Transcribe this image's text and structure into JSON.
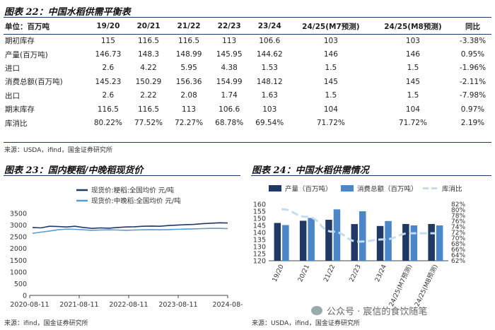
{
  "table": {
    "title": "图表 22：中国水稻供需平衡表",
    "header": [
      "单位：百万吨",
      "19/20",
      "20/21",
      "21/22",
      "22/23",
      "23/24",
      "24/25(M7预测)",
      "24/25(M8预测)",
      "同比"
    ],
    "rows": [
      [
        "期初库存",
        "115",
        "116.5",
        "116.5",
        "113",
        "106.6",
        "103",
        "103",
        "-3.38%"
      ],
      [
        "产量(百万吨)",
        "146.73",
        "148.3",
        "148.99",
        "145.95",
        "144.62",
        "146",
        "146",
        "0.95%"
      ],
      [
        "进口",
        "2.6",
        "4.22",
        "5.95",
        "4.38",
        "1.53",
        "1.5",
        "1.5",
        "-1.96%"
      ],
      [
        "消费总额(百万吨)",
        "145.23",
        "150.29",
        "156.36",
        "154.99",
        "148.12",
        "145",
        "145",
        "-2.11%"
      ],
      [
        "出口",
        "2.6",
        "2.22",
        "2.08",
        "1.74",
        "1.63",
        "1.5",
        "1.5",
        "-7.98%"
      ],
      [
        "期末库存",
        "116.5",
        "116.5",
        "113",
        "106.6",
        "103",
        "104",
        "104",
        "0.97%"
      ],
      [
        "库消比",
        "80.22%",
        "77.52%",
        "72.27%",
        "68.78%",
        "69.54%",
        "71.72%",
        "71.72%",
        "2.19%"
      ]
    ],
    "source": "来源：USDA，ifind，国金证券研究所"
  },
  "chart_left": {
    "title": "图表 23：国内粳稻/中晚稻现货价",
    "source": "来源：ifind，国金证券研究所",
    "colors": [
      "#1f3864",
      "#5b9bd5"
    ],
    "chart_data": {
      "type": "line",
      "title": "",
      "series": [
        {
          "name": "现货价:粳稻:全国均价 元/吨",
          "values": [
            2900,
            2880,
            2950,
            2940,
            2920,
            2950,
            2900,
            2860,
            2880,
            2870,
            2900,
            2920,
            2930,
            2950,
            2960,
            2950,
            2980,
            3000,
            3020,
            3030,
            3060,
            3080,
            3100,
            3090
          ]
        },
        {
          "name": "现货价:中晚稻:全国均价 元/吨",
          "values": [
            2650,
            2700,
            2750,
            2800,
            2830,
            2820,
            2800,
            2780,
            2790,
            2800,
            2790,
            2780,
            2790,
            2800,
            2810,
            2800,
            2810,
            2820,
            2830,
            2840,
            2850,
            2860,
            2860,
            2850
          ]
        }
      ],
      "x_ticks": [
        "2020-08-11",
        "2021-08-11",
        "2022-08-11",
        "2023-08-11",
        "2024-08-"
      ],
      "y_ticks": [
        "0",
        "500",
        "1000",
        "1500",
        "2000",
        "2500",
        "3000",
        "3500"
      ],
      "ylim": [
        0,
        3500
      ]
    }
  },
  "chart_right": {
    "title": "图表 24：中国水稻供需情况",
    "source": "来源：USDA，ifind，国金证券研究所",
    "colors": {
      "production": "#1f3864",
      "consumption": "#4a86c8",
      "ratio": "#c5dcf0"
    },
    "chart_data": {
      "type": "bar",
      "categories": [
        "19/20",
        "20/21",
        "21/22",
        "22/23",
        "23/24",
        "24/25(M7预测)",
        "24/25(M8预测)"
      ],
      "series": [
        {
          "name": "产量（百万吨）",
          "values": [
            146.73,
            148.3,
            148.99,
            145.95,
            144.62,
            146,
            146
          ]
        },
        {
          "name": "消费总额（百万吨）",
          "values": [
            145.23,
            150.29,
            156.36,
            154.99,
            148.12,
            145,
            145
          ]
        },
        {
          "name": "库消比",
          "values": [
            80.22,
            77.52,
            72.27,
            68.78,
            69.54,
            71.72,
            71.72
          ]
        }
      ],
      "y_ticks": [
        "120",
        "125",
        "130",
        "135",
        "140",
        "145",
        "150",
        "155",
        "160"
      ],
      "ylim": [
        120,
        160
      ],
      "y2_ticks": [
        "62%",
        "64%",
        "66%",
        "68%",
        "70%",
        "72%",
        "74%",
        "76%",
        "78%",
        "80%",
        "82%"
      ],
      "y2lim": [
        62,
        82
      ]
    }
  },
  "watermark": "公众号 · 宸信的食饮随笔"
}
